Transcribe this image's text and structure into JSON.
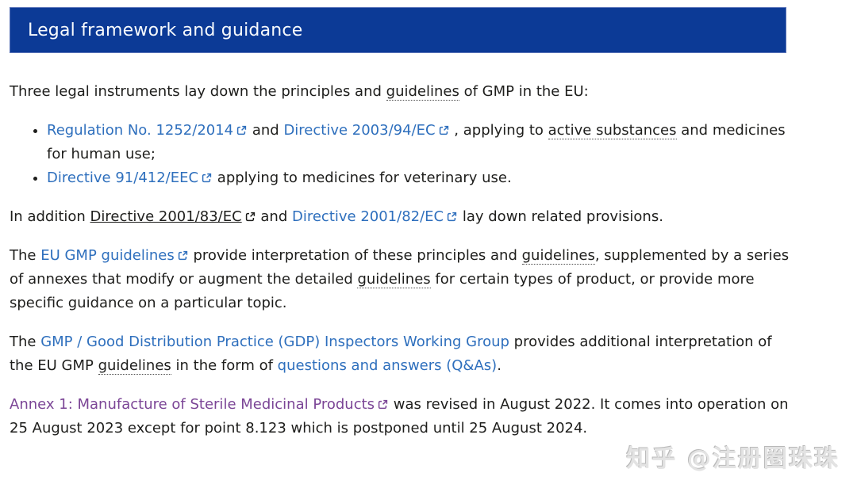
{
  "colors": {
    "banner_bg": "#0c3a96",
    "banner_border": "#5a74b8",
    "banner_text": "#f7fafd",
    "body_text": "#1e1e1c",
    "link_blue": "#2e6fbd",
    "link_hover_dark": "#1e1e1c",
    "link_visited_purple": "#7b4596",
    "watermark_gray": "#e3e3e3"
  },
  "header": {
    "title": "Legal framework and guidance"
  },
  "content": {
    "paragraphs": [
      {
        "name": "intro",
        "type": "p",
        "segments": [
          {
            "t": "Three legal instruments lay down the principles and ",
            "k": "text"
          },
          {
            "t": "guidelines",
            "k": "glossary"
          },
          {
            "t": " of GMP in the EU:",
            "k": "text"
          }
        ]
      },
      {
        "name": "legal-instruments",
        "type": "ul",
        "items": [
          {
            "segments": [
              {
                "t": "Regulation No. 1252/2014",
                "k": "link",
                "ext": true
              },
              {
                "t": " and ",
                "k": "text"
              },
              {
                "t": "Directive 2003/94/EC",
                "k": "link",
                "ext": true
              },
              {
                "t": " , applying to ",
                "k": "text"
              },
              {
                "t": "active substances",
                "k": "glossary"
              },
              {
                "t": " and medicines for human use;",
                "k": "text"
              }
            ]
          },
          {
            "segments": [
              {
                "t": "Directive 91/412/EEC",
                "k": "link",
                "ext": true
              },
              {
                "t": " applying to medicines for veterinary use.",
                "k": "text"
              }
            ]
          }
        ]
      },
      {
        "name": "in-addition",
        "type": "p",
        "segments": [
          {
            "t": "In addition ",
            "k": "text"
          },
          {
            "t": "Directive 2001/83/EC",
            "k": "link-dark",
            "ext": true
          },
          {
            "t": " and ",
            "k": "text"
          },
          {
            "t": "Directive 2001/82/EC",
            "k": "link",
            "ext": true
          },
          {
            "t": " lay down related provisions.",
            "k": "text"
          }
        ]
      },
      {
        "name": "eu-gmp-guidelines",
        "type": "p",
        "segments": [
          {
            "t": "The ",
            "k": "text"
          },
          {
            "t": "EU GMP guidelines",
            "k": "link",
            "ext": true
          },
          {
            "t": " provide interpretation of these principles and ",
            "k": "text"
          },
          {
            "t": "guidelines",
            "k": "glossary"
          },
          {
            "t": ", supplemented by a series of annexes that modify or augment the detailed ",
            "k": "text"
          },
          {
            "t": "guidelines",
            "k": "glossary"
          },
          {
            "t": " for certain types of product, or provide more specific guidance on a particular topic.",
            "k": "text"
          }
        ]
      },
      {
        "name": "gdp-working-group",
        "type": "p",
        "segments": [
          {
            "t": "The ",
            "k": "text"
          },
          {
            "t": "GMP / Good Distribution Practice (GDP) Inspectors Working Group",
            "k": "link"
          },
          {
            "t": " provides additional interpretation of the EU GMP ",
            "k": "text"
          },
          {
            "t": "guidelines",
            "k": "glossary"
          },
          {
            "t": " in the form of ",
            "k": "text"
          },
          {
            "t": "questions and answers (Q&As)",
            "k": "link"
          },
          {
            "t": ".",
            "k": "text"
          }
        ]
      },
      {
        "name": "annex-1",
        "type": "p",
        "segments": [
          {
            "t": "Annex 1: Manufacture of Sterile Medicinal Products",
            "k": "link-visited",
            "ext": true
          },
          {
            "t": " was revised in August 2022. It comes into operation on 25 August 2023 except for point 8.123 which is postponed until 25 August 2024.",
            "k": "text"
          }
        ]
      }
    ]
  },
  "watermark": {
    "text": "知乎 @注册圈珠珠"
  }
}
